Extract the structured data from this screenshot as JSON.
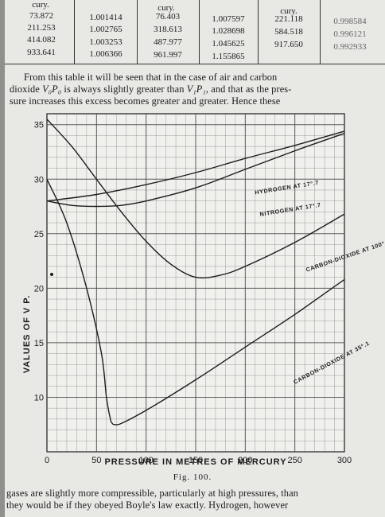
{
  "table": {
    "header_fragments": [
      "cury.",
      "cury.",
      "cury."
    ],
    "rows": [
      [
        "73.872",
        "1.001414",
        "76.403",
        "1.007597",
        "221.118",
        "0.998584"
      ],
      [
        "211.253",
        "1.002765",
        "318.613",
        "1.028698",
        "584.518",
        "0.996121"
      ],
      [
        "414.082",
        "1.003253",
        "487.977",
        "1.045625",
        "917.650",
        "0.992933"
      ],
      [
        "933.641",
        "1.006366",
        "961.997",
        "1.155865",
        "",
        ""
      ]
    ]
  },
  "paragraph_top": {
    "line1_pre": "From this table it will be seen that in the case of air and carbon",
    "line2_a": "dioxide ",
    "line2_v0p0": "V₀P₀",
    "line2_b": " is always slightly greater than ",
    "line2_v1p1": "V₁P₁",
    "line2_c": ", and that as the pres-",
    "line3": "sure increases this excess becomes greater and greater.  Hence these"
  },
  "chart_data": {
    "type": "line",
    "xlabel": "PRESSURE IN METRES OF MERCURY",
    "ylabel": "VALUES OF V P.",
    "xlim": [
      0,
      300
    ],
    "ylim": [
      5,
      36
    ],
    "xticks": [
      0,
      50,
      100,
      150,
      200,
      250,
      300
    ],
    "yticks": [
      10,
      15,
      20,
      25,
      30,
      35
    ],
    "grid": true,
    "series": [
      {
        "name": "HYDROGEN AT 17°.7",
        "x": [
          0,
          50,
          100,
          150,
          200,
          250,
          300
        ],
        "y": [
          28.0,
          28.6,
          29.5,
          30.6,
          31.9,
          33.1,
          34.4
        ]
      },
      {
        "name": "NITROGEN AT 17°.7",
        "x": [
          0,
          25,
          50,
          75,
          100,
          150,
          200,
          250,
          300
        ],
        "y": [
          28.0,
          27.6,
          27.5,
          27.6,
          28.0,
          29.2,
          30.9,
          32.6,
          34.2
        ]
      },
      {
        "name": "CARBON-DIOXIDE AT 100°",
        "x": [
          0,
          25,
          50,
          75,
          100,
          125,
          150,
          175,
          200,
          250,
          300
        ],
        "y": [
          35.5,
          33.0,
          30.0,
          27.0,
          24.3,
          22.2,
          21.0,
          21.2,
          22.0,
          24.2,
          26.8
        ]
      },
      {
        "name": "CARBON-DIOXIDE AT 35°.1",
        "x": [
          0,
          20,
          40,
          55,
          60,
          64,
          66,
          68,
          75,
          100,
          150,
          200,
          250,
          300
        ],
        "y": [
          30.0,
          26.0,
          20.0,
          14.0,
          10.0,
          8.0,
          7.6,
          7.5,
          7.6,
          8.8,
          11.6,
          14.6,
          17.6,
          20.8
        ]
      }
    ]
  },
  "figure_caption": "Fig. 100.",
  "paragraph_bottom": {
    "line1": "gases are slightly more compressible, particularly at high pressures, than",
    "line2": "they would be if they obeyed Boyle's law exactly.  Hydrogen, however"
  },
  "colors": {
    "ink": "#1c1c1c",
    "paper": "#e8e8e5",
    "grid": "#4a4a4a"
  }
}
